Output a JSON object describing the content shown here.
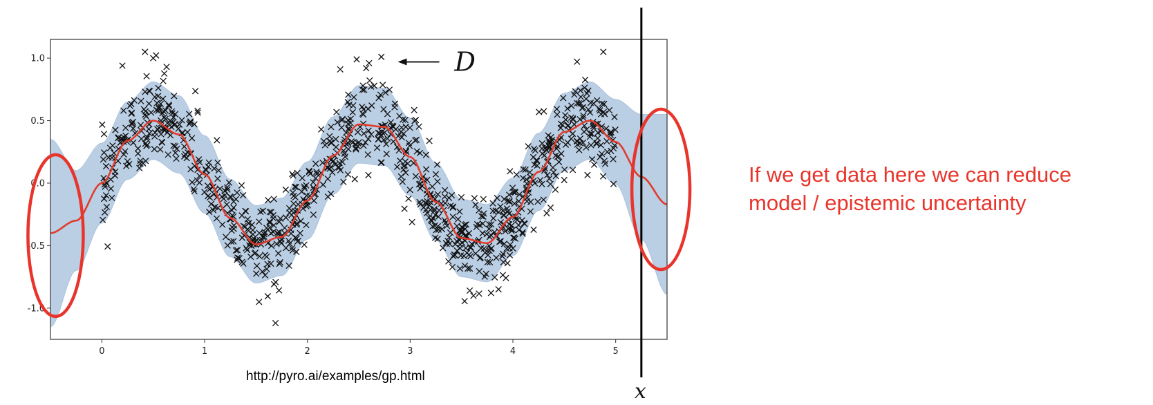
{
  "source_caption": "http://pyro.ai/examples/gp.html",
  "callout_text": "If we get data here we can reduce model / epistemic uncertainty",
  "colors": {
    "mean_line": "#e03c2c",
    "confidence_band": "#b7cce3",
    "markers": "#111111",
    "highlight_ellipse": "#e8352c",
    "callout_text": "#e8352c"
  },
  "chart_data": {
    "type": "scatter",
    "title": "",
    "xlabel": "",
    "ylabel": "",
    "xlim": [
      -0.5,
      5.5
    ],
    "ylim": [
      -1.25,
      1.15
    ],
    "grid": false,
    "xticks": [
      0,
      1,
      2,
      3,
      4,
      5
    ],
    "yticks": [
      -1.0,
      -0.5,
      0.0,
      0.5,
      1.0
    ],
    "xtick_labels": [
      "0",
      "1",
      "2",
      "3",
      "4",
      "5"
    ],
    "ytick_labels": [
      "-1.0",
      "-0.5",
      "0.0",
      "0.5",
      "1.0"
    ],
    "observations": {
      "marker": "x",
      "x_range": [
        0.0,
        5.0
      ],
      "approx_count": 1000,
      "trend": "0.5 * sin(3x) plus noise (std about 0.2)",
      "highlighted_points": [
        {
          "x": 0.2,
          "y": 0.94
        },
        {
          "x": 0.42,
          "y": 1.05
        },
        {
          "x": 0.5,
          "y": 1.0
        },
        {
          "x": 0.63,
          "y": 0.93
        },
        {
          "x": 2.32,
          "y": 0.91
        },
        {
          "x": 2.48,
          "y": 0.99
        },
        {
          "x": 2.6,
          "y": 0.96
        },
        {
          "x": 2.72,
          "y": 1.01
        },
        {
          "x": 4.88,
          "y": 1.05
        },
        {
          "x": 1.69,
          "y": -1.12
        },
        {
          "x": 1.53,
          "y": -0.95
        },
        {
          "x": 3.58,
          "y": -0.86
        },
        {
          "x": 3.86,
          "y": -0.85
        }
      ]
    },
    "posterior_mean": {
      "x": [
        -0.5,
        -0.25,
        0.0,
        0.25,
        0.5,
        0.75,
        1.0,
        1.25,
        1.5,
        1.75,
        2.0,
        2.25,
        2.5,
        2.75,
        3.0,
        3.25,
        3.5,
        3.75,
        4.0,
        4.25,
        4.5,
        4.75,
        5.0,
        5.25,
        5.5
      ],
      "y": [
        -0.4,
        -0.3,
        0.0,
        0.34,
        0.5,
        0.39,
        0.07,
        -0.28,
        -0.49,
        -0.43,
        -0.14,
        0.22,
        0.47,
        0.45,
        0.21,
        -0.15,
        -0.44,
        -0.48,
        -0.27,
        0.09,
        0.41,
        0.5,
        0.33,
        0.05,
        -0.17
      ]
    },
    "confidence_band": {
      "x": [
        -0.5,
        -0.25,
        0.0,
        0.25,
        0.5,
        0.75,
        1.0,
        1.25,
        1.5,
        1.75,
        2.0,
        2.25,
        2.5,
        2.75,
        3.0,
        3.25,
        3.5,
        3.75,
        4.0,
        4.25,
        4.5,
        4.75,
        5.0,
        5.25,
        5.5
      ],
      "half_width": [
        0.75,
        0.4,
        0.32,
        0.31,
        0.31,
        0.31,
        0.31,
        0.31,
        0.31,
        0.31,
        0.31,
        0.31,
        0.31,
        0.31,
        0.31,
        0.31,
        0.31,
        0.31,
        0.31,
        0.31,
        0.31,
        0.31,
        0.34,
        0.5,
        0.72
      ]
    },
    "annotations": [
      {
        "text": "D",
        "arrow_to": {
          "x": 2.88,
          "y": 0.97
        }
      },
      {
        "text": "x",
        "vertical_line_x": 5.25
      },
      {
        "shape": "ellipse",
        "center": {
          "x": -0.45,
          "y": -0.42
        }
      },
      {
        "shape": "ellipse",
        "center": {
          "x": 5.44,
          "y": -0.05
        }
      }
    ]
  }
}
